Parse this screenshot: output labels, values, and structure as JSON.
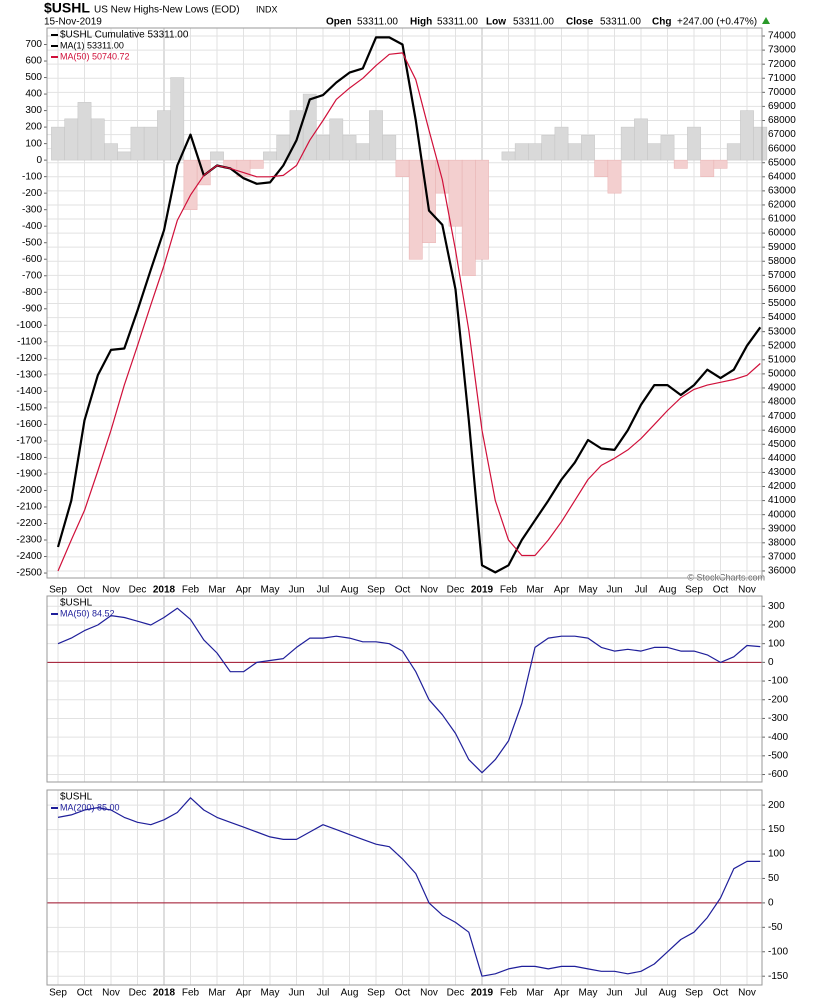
{
  "header": {
    "symbol": "$USHL",
    "name": "US New Highs-New Lows (EOD)",
    "exchange": "INDX",
    "date": "15-Nov-2019",
    "quote": [
      {
        "label": "Open",
        "value": "53311.00"
      },
      {
        "label": "High",
        "value": "53311.00"
      },
      {
        "label": "Low",
        "value": "53311.00"
      },
      {
        "label": "Close",
        "value": "53311.00"
      },
      {
        "label": "Chg",
        "value": "+247.00 (+0.47%)"
      }
    ],
    "watermark": "© StockCharts.com"
  },
  "chart_data": [
    {
      "type": "line",
      "legend_title": "$USHL Cumulative 53311.00",
      "categories": [
        "Sep",
        null,
        "Oct",
        null,
        "Nov",
        null,
        "Dec",
        null,
        "2018",
        null,
        "Feb",
        null,
        "Mar",
        null,
        "Apr",
        null,
        "May",
        null,
        "Jun",
        null,
        "Jul",
        null,
        "Aug",
        null,
        "Sep",
        null,
        "Oct",
        null,
        "Nov",
        null,
        "Dec",
        null,
        "2019",
        null,
        "Feb",
        null,
        "Mar",
        null,
        "Apr",
        null,
        "May",
        null,
        "Jun",
        null,
        "Jul",
        null,
        "Aug",
        null,
        "Sep",
        null,
        "Oct",
        null,
        "Nov",
        null
      ],
      "ylim": [
        -2530,
        800
      ],
      "yticks": [
        -2500,
        -2400,
        -2300,
        -2200,
        -2100,
        -2000,
        -1900,
        -1800,
        -1700,
        -1600,
        -1500,
        -1400,
        -1300,
        -1200,
        -1100,
        -1000,
        -900,
        -800,
        -700,
        -600,
        -500,
        -400,
        -300,
        -200,
        -100,
        0,
        100,
        200,
        300,
        400,
        500,
        600,
        700
      ],
      "y2lim": [
        35500,
        74570
      ],
      "y2ticks": [
        36000,
        37000,
        38000,
        39000,
        40000,
        41000,
        42000,
        43000,
        44000,
        45000,
        46000,
        47000,
        48000,
        49000,
        50000,
        51000,
        52000,
        53000,
        54000,
        55000,
        56000,
        57000,
        58000,
        59000,
        60000,
        61000,
        62000,
        63000,
        64000,
        65000,
        66000,
        67000,
        68000,
        69000,
        70000,
        71000,
        72000,
        73000,
        74000
      ],
      "grid": true,
      "series": [
        {
          "type": "bar",
          "color": "#d9d9d9",
          "negative_color": "#f3cfcf",
          "values": [
            200,
            250,
            350,
            250,
            100,
            50,
            200,
            200,
            300,
            500,
            -300,
            -150,
            50,
            -50,
            -100,
            -50,
            50,
            150,
            300,
            400,
            150,
            250,
            150,
            100,
            300,
            150,
            -100,
            -600,
            -500,
            -200,
            -400,
            -700,
            -600,
            0,
            50,
            100,
            100,
            150,
            200,
            100,
            150,
            -100,
            -200,
            200,
            250,
            100,
            150,
            -50,
            200,
            -100,
            -50,
            100,
            300,
            200
          ]
        },
        {
          "type": "line",
          "name": "MA(1) 53311.00",
          "color": "#000000",
          "width": 2.2,
          "axis": "y2",
          "values": [
            37700,
            41000,
            46700,
            49900,
            51700,
            51800,
            54500,
            57400,
            60200,
            64800,
            67000,
            64100,
            64800,
            64600,
            63900,
            63500,
            63600,
            64800,
            66600,
            69500,
            69800,
            70700,
            71400,
            71700,
            73900,
            73900,
            73400,
            68000,
            61600,
            60600,
            56000,
            46700,
            36400,
            35900,
            36400,
            38200,
            39600,
            41000,
            42500,
            43700,
            45300,
            44700,
            44600,
            46000,
            47800,
            49200,
            49200,
            48500,
            49200,
            50300,
            49700,
            50300,
            52000,
            53311
          ]
        },
        {
          "type": "line",
          "name": "MA(50) 50740.72",
          "color": "#d0103a",
          "width": 1.2,
          "axis": "y2",
          "values": [
            36000,
            38200,
            40300,
            43100,
            46000,
            49200,
            52000,
            54900,
            57700,
            60900,
            62700,
            64100,
            64800,
            64600,
            64300,
            64000,
            64000,
            64100,
            64800,
            66600,
            68000,
            69500,
            70300,
            71000,
            71900,
            72700,
            72800,
            70900,
            67300,
            63800,
            58800,
            53100,
            46000,
            41000,
            38200,
            37100,
            37100,
            38200,
            39500,
            41000,
            42500,
            43500,
            44000,
            44600,
            45400,
            46400,
            47400,
            48300,
            48900,
            49200,
            49400,
            49600,
            49900,
            50740.72
          ]
        }
      ]
    },
    {
      "type": "line",
      "legend_title": "$USHL",
      "zero_line": true,
      "grid": true,
      "ylim": [
        -640,
        355
      ],
      "yticks": [
        -600,
        -500,
        -400,
        -300,
        -200,
        -100,
        0,
        100,
        200,
        300
      ],
      "series": [
        {
          "type": "line",
          "name": "MA(50) 84.52",
          "color": "#1f1f9a",
          "width": 1.2,
          "values": [
            100,
            130,
            170,
            200,
            250,
            240,
            220,
            200,
            240,
            290,
            230,
            120,
            50,
            -50,
            -50,
            0,
            10,
            20,
            80,
            130,
            130,
            140,
            130,
            110,
            110,
            100,
            60,
            -50,
            -200,
            -280,
            -380,
            -520,
            -590,
            -520,
            -420,
            -220,
            80,
            130,
            140,
            140,
            130,
            80,
            60,
            70,
            60,
            80,
            80,
            60,
            60,
            40,
            0,
            30,
            90,
            84.52
          ]
        }
      ]
    },
    {
      "type": "line",
      "legend_title": "$USHL",
      "zero_line": true,
      "grid": true,
      "ylim": [
        -168,
        231
      ],
      "yticks": [
        -150,
        -100,
        -50,
        0,
        50,
        100,
        150,
        200
      ],
      "series": [
        {
          "type": "line",
          "name": "MA(200) 85.00",
          "color": "#1f1f9a",
          "width": 1.2,
          "values": [
            175,
            180,
            190,
            195,
            190,
            175,
            165,
            160,
            170,
            185,
            215,
            190,
            175,
            165,
            155,
            145,
            135,
            130,
            130,
            145,
            160,
            150,
            140,
            130,
            120,
            115,
            90,
            60,
            0,
            -25,
            -40,
            -60,
            -150,
            -145,
            -135,
            -130,
            -130,
            -135,
            -130,
            -130,
            -135,
            -140,
            -140,
            -145,
            -140,
            -125,
            -100,
            -75,
            -60,
            -30,
            10,
            70,
            85,
            85
          ]
        }
      ]
    }
  ]
}
